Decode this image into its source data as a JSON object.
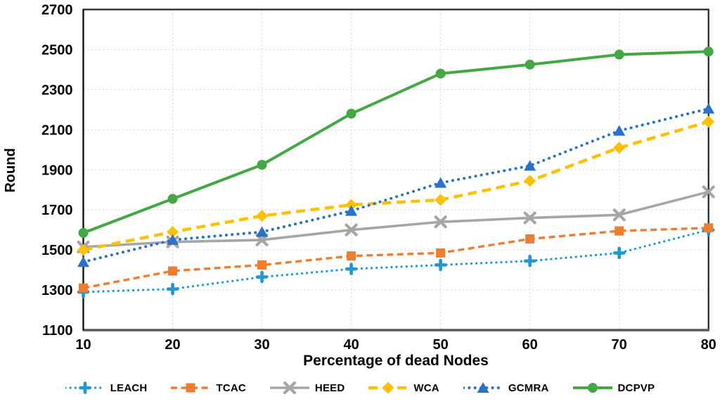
{
  "figure": {
    "background": "#FFFFFF",
    "border_color": "#1F1F1F",
    "axis_color": "#595959",
    "gridline_color": "#DCDCDC",
    "text_color": "#000000"
  },
  "chart_data": {
    "type": "line",
    "title": "",
    "xlabel": "Percentage of dead Nodes",
    "ylabel": "Round",
    "x": [
      10,
      20,
      30,
      40,
      50,
      60,
      70,
      80
    ],
    "xticklabels": [
      "10",
      "20",
      "30",
      "40",
      "50",
      "60",
      "70",
      "80"
    ],
    "ylim": [
      1100,
      2700
    ],
    "yticks": [
      1100,
      1300,
      1500,
      1700,
      1900,
      2100,
      2300,
      2500,
      2700
    ],
    "grid": {
      "horizontal": "dashed",
      "vertical": "dashed"
    },
    "legend_position": "bottom",
    "series": [
      {
        "name": "LEACH",
        "color": "#2196D5",
        "line": "dotted",
        "marker": "plus",
        "values": [
          1290,
          1305,
          1365,
          1405,
          1425,
          1445,
          1485,
          1600
        ]
      },
      {
        "name": "TCAC",
        "color": "#ED7D31",
        "line": "dashed",
        "marker": "square",
        "values": [
          1310,
          1395,
          1425,
          1470,
          1485,
          1555,
          1595,
          1610
        ]
      },
      {
        "name": "HEED",
        "color": "#A6A6A6",
        "line": "solid",
        "marker": "x",
        "values": [
          1515,
          1540,
          1550,
          1600,
          1640,
          1660,
          1675,
          1790
        ]
      },
      {
        "name": "WCA",
        "color": "#FFC000",
        "line": "dashed",
        "marker": "diamond",
        "values": [
          1500,
          1590,
          1670,
          1725,
          1750,
          1845,
          2010,
          2140
        ]
      },
      {
        "name": "GCMRA",
        "color": "#2B70C9",
        "line": "dotted",
        "marker": "triangle",
        "values": [
          1440,
          1550,
          1590,
          1695,
          1835,
          1920,
          2095,
          2205
        ]
      },
      {
        "name": "DCPVP",
        "color": "#43A843",
        "line": "solid",
        "marker": "circle",
        "values": [
          1585,
          1755,
          1925,
          2180,
          2380,
          2425,
          2475,
          2490
        ]
      }
    ]
  }
}
